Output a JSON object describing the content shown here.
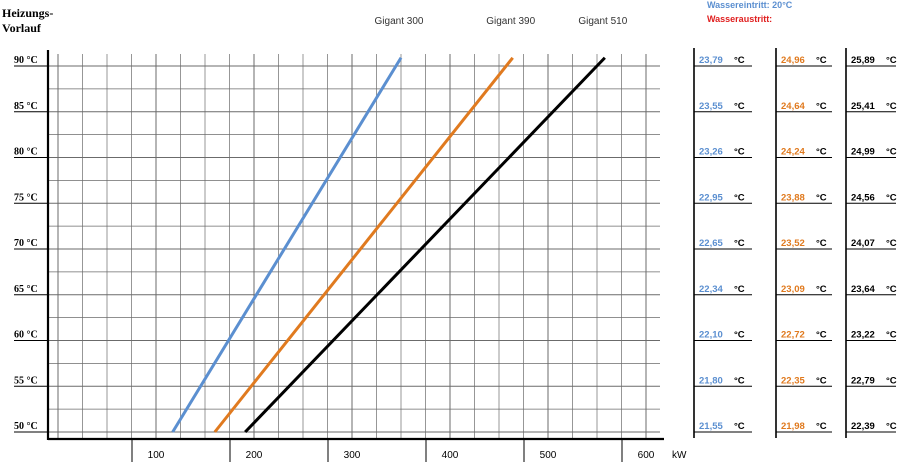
{
  "chart_data": {
    "type": "line",
    "ylabel": "Heizungs-\nVorlauf",
    "xlabel": "kW",
    "xlim": [
      0,
      660
    ],
    "ylim": [
      50,
      90
    ],
    "y_ticks": [
      {
        "value": 90,
        "label": "90 °C"
      },
      {
        "value": 85,
        "label": "85 °C"
      },
      {
        "value": 80,
        "label": "80 °C"
      },
      {
        "value": 75,
        "label": "75 °C"
      },
      {
        "value": 70,
        "label": "70 °C"
      },
      {
        "value": 65,
        "label": "65 °C"
      },
      {
        "value": 60,
        "label": "60 °C"
      },
      {
        "value": 55,
        "label": "55 °C"
      },
      {
        "value": 50,
        "label": "50 °C"
      }
    ],
    "x_ticks": [
      {
        "value": 100,
        "label": "100"
      },
      {
        "value": 200,
        "label": "200"
      },
      {
        "value": 300,
        "label": "300"
      },
      {
        "value": 400,
        "label": "400"
      },
      {
        "value": 500,
        "label": "500"
      },
      {
        "value": 600,
        "label": "600"
      }
    ],
    "series": [
      {
        "name": "Gigant 300",
        "color": "#5b8fd0",
        "points": [
          [
            117,
            50
          ],
          [
            350,
            90.9
          ]
        ]
      },
      {
        "name": "Gigant 390",
        "color": "#e07a1f",
        "points": [
          [
            160,
            50
          ],
          [
            464,
            90.9
          ]
        ]
      },
      {
        "name": "Gigant 510",
        "color": "#000000",
        "points": [
          [
            191,
            50
          ],
          [
            558,
            90.9
          ]
        ]
      }
    ],
    "legend": {
      "entry_label": "Wassereintritt:  20°C",
      "exit_label": "Wasseraustritt:",
      "entry_color": "#5b8fd0",
      "exit_color": "#e02020"
    },
    "grid": true,
    "table": {
      "columns": [
        {
          "unit": "°C",
          "color": "#5b8fd0",
          "values": [
            "23,79",
            "23,55",
            "23,26",
            "22,95",
            "22,65",
            "22,34",
            "22,10",
            "21,80",
            "21,55"
          ]
        },
        {
          "unit": "°C",
          "color": "#e07a1f",
          "values": [
            "24,96",
            "24,64",
            "24,24",
            "23,88",
            "23,52",
            "23,09",
            "22,72",
            "22,35",
            "21,98"
          ]
        },
        {
          "unit": "°C",
          "color": "#000000",
          "values": [
            "25,89",
            "25,41",
            "24,99",
            "24,56",
            "24,07",
            "23,64",
            "23,22",
            "22,79",
            "22,39"
          ]
        }
      ]
    }
  }
}
